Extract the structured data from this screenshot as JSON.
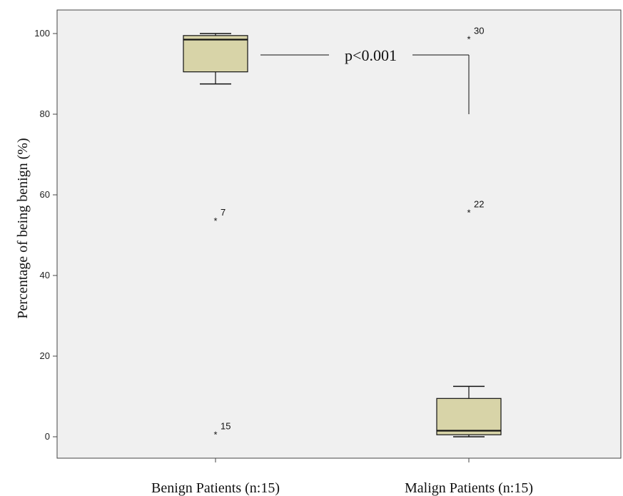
{
  "chart_data": {
    "type": "boxplot",
    "ylabel": "Percentage of being benign (%)",
    "xlabel": "",
    "ylim": [
      -5,
      106
    ],
    "yticks": [
      0,
      20,
      40,
      60,
      80,
      100
    ],
    "grid": false,
    "box_color": "#d8d4a8",
    "plot_background": "#f0f0f0",
    "categories": [
      "Benign Patients (n:15)",
      "Malign Patients (n:15)"
    ],
    "boxes": [
      {
        "category": "Benign Patients (n:15)",
        "whisker_low": 87.5,
        "q1": 90.5,
        "median": 98.5,
        "q3": 99.5,
        "whisker_high": 100,
        "outliers": [
          {
            "value": 54,
            "label": "7",
            "marker": "*"
          },
          {
            "value": 1,
            "label": "15",
            "marker": "*"
          }
        ]
      },
      {
        "category": "Malign Patients (n:15)",
        "whisker_low": 0,
        "q1": 0.5,
        "median": 1.5,
        "q3": 9.5,
        "whisker_high": 12.5,
        "outliers": [
          {
            "value": 99,
            "label": "30",
            "marker": "*"
          },
          {
            "value": 56,
            "label": "22",
            "marker": "*"
          }
        ]
      }
    ],
    "annotations": [
      {
        "text": "p<0.001",
        "type": "significance-bracket"
      }
    ]
  }
}
